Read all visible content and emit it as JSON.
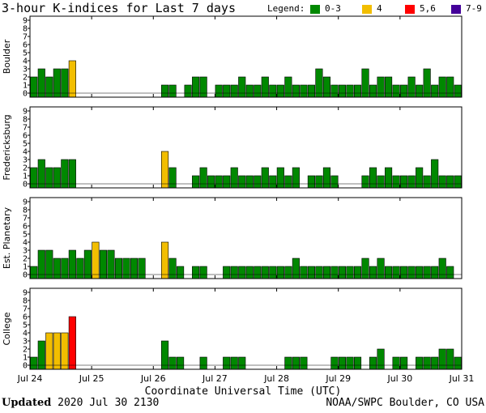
{
  "title": "3-hour K-indices for Last 7 days",
  "legend": {
    "label": "Legend:",
    "entries": [
      {
        "label": "0-3",
        "color": "#008800"
      },
      {
        "label": "4",
        "color": "#f2be00"
      },
      {
        "label": "5,6",
        "color": "#ff0000"
      },
      {
        "label": "7-9",
        "color": "#440099"
      }
    ]
  },
  "chart_data": {
    "type": "bar",
    "title": "3-hour K-indices for Last 7 days",
    "xlabel": "Coordinate Universal Time (UTC)",
    "x_ticks": [
      "Jul 24",
      "Jul 25",
      "Jul 26",
      "Jul 27",
      "Jul 28",
      "Jul 29",
      "Jul 30",
      "Jul 31"
    ],
    "ylim": [
      0,
      9
    ],
    "y_ticks": [
      0,
      1,
      2,
      3,
      4,
      5,
      6,
      7,
      8,
      9
    ],
    "bins_per_day": 8,
    "panels": [
      {
        "name": "Boulder",
        "values": [
          2,
          3,
          2,
          3,
          3,
          4,
          0,
          0,
          0,
          0,
          0,
          0,
          0,
          0,
          0,
          0,
          0,
          1,
          1,
          0,
          1,
          2,
          2,
          0,
          1,
          1,
          1,
          2,
          1,
          1,
          2,
          1,
          1,
          2,
          1,
          1,
          1,
          3,
          2,
          1,
          1,
          1,
          1,
          3,
          1,
          2,
          2,
          1,
          1,
          2,
          1,
          3,
          1,
          2,
          2,
          1,
          0
        ]
      },
      {
        "name": "Fredericksburg",
        "values": [
          2,
          3,
          2,
          2,
          3,
          3,
          0,
          0,
          0,
          0,
          0,
          0,
          0,
          0,
          0,
          0,
          0,
          4,
          2,
          0,
          0,
          1,
          2,
          1,
          1,
          1,
          2,
          1,
          1,
          1,
          2,
          1,
          2,
          1,
          2,
          0,
          1,
          1,
          2,
          1,
          0,
          0,
          0,
          1,
          2,
          1,
          2,
          1,
          1,
          1,
          2,
          1,
          3,
          1,
          1,
          1,
          0
        ]
      },
      {
        "name": "Est. Planetary",
        "values": [
          1,
          3,
          3,
          2,
          2,
          3,
          2,
          3,
          4,
          3,
          3,
          2,
          2,
          2,
          2,
          0,
          0,
          4,
          2,
          1,
          0,
          1,
          1,
          0,
          0,
          1,
          1,
          1,
          1,
          1,
          1,
          1,
          1,
          1,
          2,
          1,
          1,
          1,
          1,
          1,
          1,
          1,
          1,
          2,
          1,
          2,
          1,
          1,
          1,
          1,
          1,
          1,
          1,
          2,
          1,
          0,
          0
        ]
      },
      {
        "name": "College",
        "values": [
          1,
          3,
          4,
          4,
          4,
          6,
          0,
          0,
          0,
          0,
          0,
          0,
          0,
          0,
          0,
          0,
          0,
          3,
          1,
          1,
          0,
          0,
          1,
          0,
          0,
          1,
          1,
          1,
          0,
          0,
          0,
          0,
          0,
          1,
          1,
          1,
          0,
          0,
          0,
          1,
          1,
          1,
          1,
          0,
          1,
          2,
          0,
          1,
          1,
          0,
          1,
          1,
          1,
          2,
          2,
          1,
          0
        ]
      }
    ]
  },
  "x_axis_title": "Coordinate Universal Time (UTC)",
  "footer": {
    "updated_label": "Updated",
    "updated_value": "2020 Jul 30 2130",
    "source": "NOAA/SWPC Boulder, CO USA"
  }
}
